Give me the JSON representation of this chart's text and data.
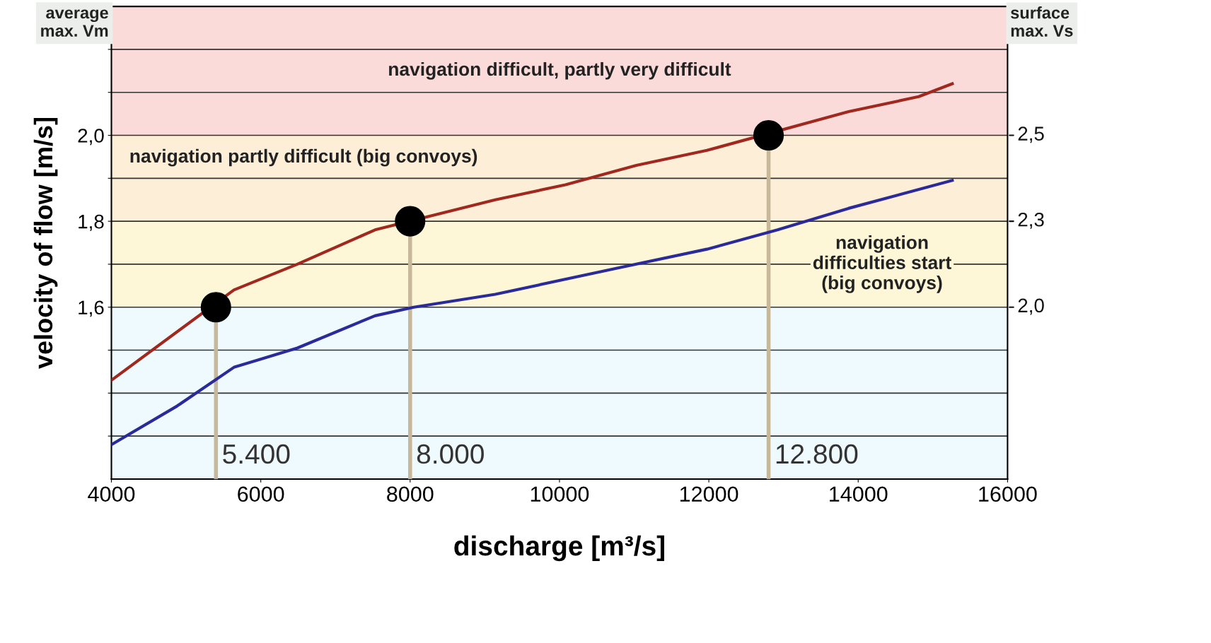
{
  "chart_data": {
    "type": "line",
    "xlabel": "discharge [m³/s]",
    "ylabel": "velocity of flow [m/s]",
    "y2label": "surface\nmax. Vs",
    "x": [
      4000,
      4880,
      5640,
      6490,
      7530,
      8050,
      9140,
      10750,
      11975,
      12920,
      13870,
      15260
    ],
    "series": [
      {
        "color": "#a0281e",
        "x": [
          4000,
          5640,
          6490,
          7530,
          9140,
          10080,
          11030,
          11975,
          13870,
          14810,
          15260
        ],
        "values": [
          1.43,
          1.64,
          1.7,
          1.78,
          1.85,
          1.885,
          1.93,
          1.965,
          2.055,
          2.09,
          2.12
        ]
      },
      {
        "color": "#2a2a9a",
        "values": [
          1.28,
          1.37,
          1.46,
          1.505,
          1.58,
          1.6,
          1.63,
          1.69,
          1.735,
          1.78,
          1.83,
          1.895
        ]
      },
      {
        "type": "lollipop",
        "color": "#000000",
        "x": [
          5400,
          8000,
          12800
        ],
        "values": [
          1.6,
          1.8,
          2.0
        ]
      }
    ],
    "xlim": [
      4000,
      16000
    ],
    "xticks": [
      4000,
      6000,
      8000,
      10000,
      12000,
      14000,
      16000
    ],
    "ylim": [
      1.2,
      2.3
    ],
    "yticks": [
      {
        "value": 1.3,
        "label": null
      },
      {
        "value": 1.4,
        "label": null
      },
      {
        "value": 1.5,
        "label": null
      },
      {
        "value": 1.6,
        "label": "1,6"
      },
      {
        "value": 1.7,
        "label": null
      },
      {
        "value": 1.8,
        "label": "1,8"
      },
      {
        "value": 1.9,
        "label": null
      },
      {
        "value": 2.0,
        "label": "2,0"
      },
      {
        "value": 2.1,
        "label": null
      },
      {
        "value": 2.2,
        "label": null
      }
    ],
    "grid": "y",
    "bands": [
      {
        "axis": "y",
        "from": 1.2,
        "to": 1.6,
        "color": "#eefafd",
        "label": null
      },
      {
        "axis": "y",
        "from": 1.6,
        "to": 1.8,
        "color": "#fdf7d8",
        "label": "navigation\ndifficulties start\n(big convoys)"
      },
      {
        "axis": "y",
        "from": 1.8,
        "to": 2.0,
        "color": "#fdeed8",
        "label": "navigation partly difficult (big convoys)"
      },
      {
        "axis": "y",
        "from": 2.0,
        "to": 2.3,
        "color": "#fbdada",
        "label": "navigation difficult, partly very difficult"
      }
    ],
    "annotations": [
      "average\nmax. Vm",
      {
        "text": "5.400",
        "x": 5400,
        "y": 1.2
      },
      {
        "text": "8.000",
        "x": 8000,
        "y": 1.2
      },
      {
        "text": "12.800",
        "x": 12800,
        "y": 1.2
      },
      {
        "text": "2,0",
        "x": 16000,
        "y": 1.6
      },
      {
        "text": "2,3",
        "x": 16000,
        "y": 1.8
      },
      {
        "text": "2,5",
        "x": 16000,
        "y": 2.0
      }
    ]
  }
}
